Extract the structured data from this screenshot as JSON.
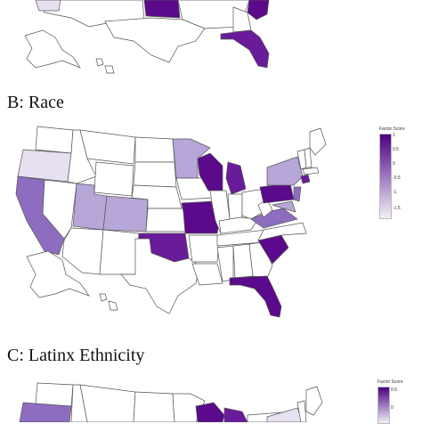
{
  "panels": [
    {
      "id": "b",
      "title": "B: Race"
    },
    {
      "id": "c",
      "title": "C: Latinx Ethnicity"
    }
  ],
  "legend_b": {
    "title": "Factor Score",
    "ticks": [
      "1",
      "0.5",
      "0",
      "-0.5",
      "-1",
      "-1.5"
    ],
    "color_high": "#4b0082",
    "color_low": "#f2f0f7"
  },
  "legend_c": {
    "title": "Factor Score",
    "ticks": [
      "0.5",
      "0"
    ],
    "color_high": "#4b0082",
    "color_low": "#f2f0f7"
  },
  "colors": {
    "dark": "#5a0a8a",
    "dark2": "#6a1b9a",
    "medium": "#8e6cc0",
    "light": "#b7a6d8",
    "pale": "#e6e0f0",
    "none": "#ffffff"
  }
}
